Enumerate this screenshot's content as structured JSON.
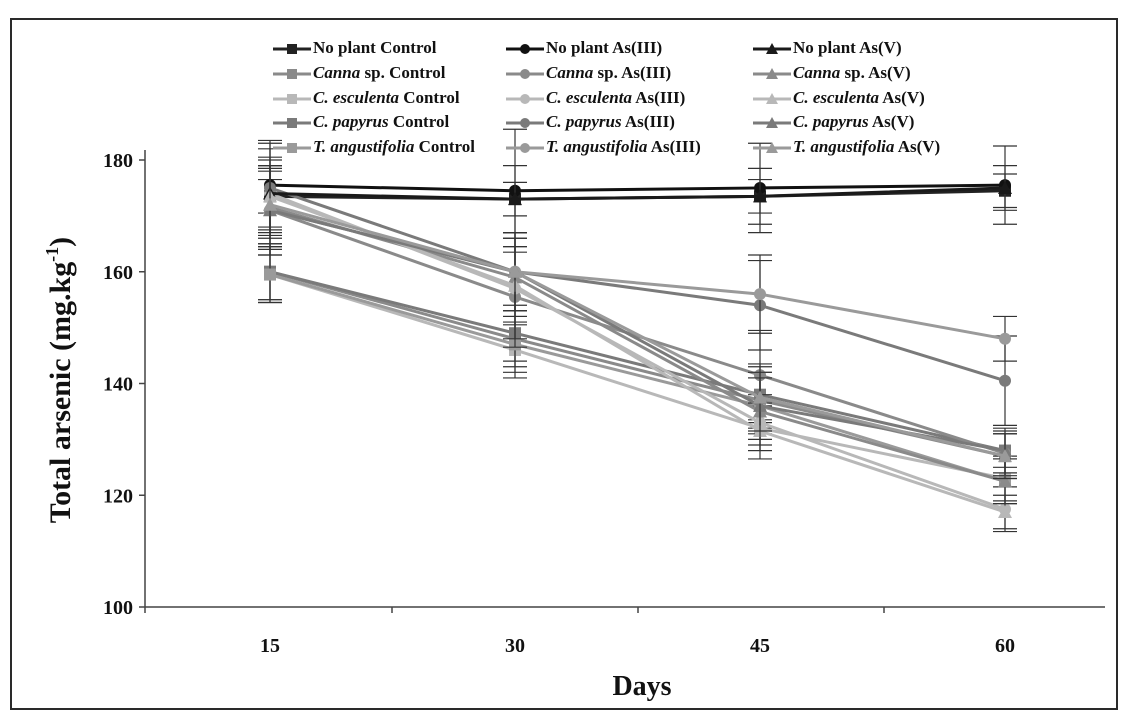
{
  "chart_data": {
    "type": "line",
    "xlabel": "Days",
    "ylabel": "Total arsenic (mg.kg",
    "ylabel_sup": "-1",
    "ylabel_close": ")",
    "x": [
      15,
      30,
      45,
      60
    ],
    "x_ticks": [
      "15",
      "30",
      "45",
      "60"
    ],
    "y_ticks": [
      "100",
      "120",
      "140",
      "160",
      "180"
    ],
    "ylim": [
      100,
      185
    ],
    "legend_position": "top",
    "series": [
      {
        "name_em": "",
        "name_rest": "No plant Control",
        "marker": "square",
        "color": "#222222",
        "values": [
          173.5,
          173,
          173.5,
          174.5
        ],
        "err": [
          3,
          3,
          3,
          3
        ]
      },
      {
        "name_em": "Canna",
        "name_rest": " sp. Control",
        "marker": "square",
        "color": "#8a8a8a",
        "values": [
          160,
          148,
          137,
          127
        ],
        "err": [
          5,
          5,
          5,
          4
        ]
      },
      {
        "name_em": "C. esculenta",
        "name_rest": " Control",
        "marker": "square",
        "color": "#b8b8b8",
        "values": [
          159.5,
          146,
          132,
          123
        ],
        "err": [
          5,
          5,
          4,
          4
        ]
      },
      {
        "name_em": "C. papyrus",
        "name_rest": " Control",
        "marker": "square",
        "color": "#7a7a7a",
        "values": [
          160,
          149,
          138,
          128
        ],
        "err": [
          5,
          5,
          5,
          4
        ]
      },
      {
        "name_em": "T. angustifolia",
        "name_rest": " Control",
        "marker": "square",
        "color": "#9a9a9a",
        "values": [
          159.5,
          147,
          136,
          122.5
        ],
        "err": [
          5,
          5,
          5,
          4
        ]
      },
      {
        "name_em": "",
        "name_rest": "No plant As(III)",
        "marker": "circle",
        "color": "#111111",
        "values": [
          175.5,
          174.5,
          175,
          175.5
        ],
        "err": [
          8,
          11,
          8,
          7
        ]
      },
      {
        "name_em": "Canna",
        "name_rest": " sp. As(III)",
        "marker": "circle",
        "color": "#8a8a8a",
        "values": [
          171,
          155.5,
          141.5,
          127.5
        ],
        "err": [
          8,
          9,
          8,
          4
        ]
      },
      {
        "name_em": "C. esculenta",
        "name_rest": " As(III)",
        "marker": "circle",
        "color": "#b8b8b8",
        "values": [
          174,
          157,
          133,
          117.5
        ],
        "err": [
          8,
          9,
          5,
          4
        ]
      },
      {
        "name_em": "C. papyrus",
        "name_rest": " As(III)",
        "marker": "circle",
        "color": "#7a7a7a",
        "values": [
          175,
          160,
          154,
          140.5
        ],
        "err": [
          8,
          7,
          8,
          8
        ]
      },
      {
        "name_em": "T. angustifolia",
        "name_rest": " As(III)",
        "marker": "circle",
        "color": "#9a9a9a",
        "values": [
          171,
          160,
          156,
          148
        ],
        "err": [
          8,
          7,
          7,
          4
        ]
      },
      {
        "name_em": "",
        "name_rest": "No plant As(V)",
        "marker": "triangle",
        "color": "#1a1a1a",
        "values": [
          174,
          173,
          173.5,
          175
        ],
        "err": [
          6,
          6,
          5,
          4
        ]
      },
      {
        "name_em": "Canna",
        "name_rest": " sp. As(V)",
        "marker": "triangle",
        "color": "#8a8a8a",
        "values": [
          171.5,
          159,
          135,
          122.5
        ],
        "err": [
          7,
          7,
          6,
          4
        ]
      },
      {
        "name_em": "C. esculenta",
        "name_rest": " As(V)",
        "marker": "triangle",
        "color": "#b8b8b8",
        "values": [
          173.5,
          157.5,
          131.5,
          117
        ],
        "err": [
          7,
          7,
          5,
          3
        ]
      },
      {
        "name_em": "C. papyrus",
        "name_rest": " As(V)",
        "marker": "triangle",
        "color": "#7a7a7a",
        "values": [
          171,
          160,
          136,
          128
        ],
        "err": [
          7,
          7,
          6,
          3
        ]
      },
      {
        "name_em": "T. angustifolia",
        "name_rest": " As(V)",
        "marker": "triangle",
        "color": "#9a9a9a",
        "values": [
          172,
          160,
          137.5,
          127
        ],
        "err": [
          7,
          7,
          6,
          4
        ]
      }
    ]
  }
}
